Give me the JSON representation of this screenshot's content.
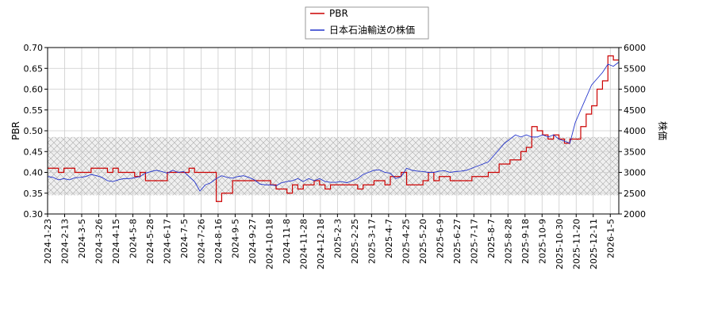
{
  "chart_data": {
    "type": "line",
    "xlabel": "",
    "ylabel_left": "PBR",
    "ylabel_right": "株価",
    "ylim_left": [
      0.3,
      0.7
    ],
    "ylim_right": [
      2000,
      6000
    ],
    "yticks_left": [
      "0.30",
      "0.35",
      "0.40",
      "0.45",
      "0.50",
      "0.55",
      "0.60",
      "0.65",
      "0.70"
    ],
    "yticks_right": [
      "2000",
      "2500",
      "3000",
      "3500",
      "4000",
      "4500",
      "5000",
      "5500",
      "6000"
    ],
    "x_tick_labels": [
      "2024-1-23",
      "2024-2-13",
      "2024-3-5",
      "2024-3-26",
      "2024-4-15",
      "2024-5-8",
      "2024-5-28",
      "2024-6-17",
      "2024-7-5",
      "2024-7-26",
      "2024-8-16",
      "2024-9-5",
      "2024-9-27",
      "2024-10-18",
      "2024-11-8",
      "2024-11-28",
      "2024-12-18",
      "2025-2-3",
      "2025-2-25",
      "2025-3-17",
      "2025-4-7",
      "2025-4-25",
      "2025-5-20",
      "2025-6-9",
      "2025-6-27",
      "2025-7-17",
      "2025-8-7",
      "2025-8-28",
      "2025-9-18",
      "2025-10-9",
      "2025-10-30",
      "2025-11-20",
      "2025-12-11",
      "2026-1-5"
    ],
    "grid": true,
    "legend_placement": "top-center",
    "shaded_band_left": [
      0.345,
      0.485
    ],
    "colors": {
      "pbr": "#cc0000",
      "price": "#2233cc",
      "band": "#999999",
      "grid": "#cccccc"
    },
    "series": [
      {
        "name": "PBR",
        "axis": "left",
        "values": [
          0.41,
          0.41,
          0.4,
          0.41,
          0.41,
          0.4,
          0.4,
          0.4,
          0.41,
          0.41,
          0.41,
          0.4,
          0.41,
          0.4,
          0.4,
          0.4,
          0.39,
          0.4,
          0.38,
          0.38,
          0.38,
          0.38,
          0.4,
          0.4,
          0.4,
          0.4,
          0.41,
          0.4,
          0.4,
          0.4,
          0.4,
          0.33,
          0.35,
          0.35,
          0.38,
          0.38,
          0.38,
          0.38,
          0.38,
          0.38,
          0.38,
          0.37,
          0.36,
          0.36,
          0.35,
          0.37,
          0.36,
          0.37,
          0.37,
          0.38,
          0.37,
          0.36,
          0.37,
          0.37,
          0.37,
          0.37,
          0.37,
          0.36,
          0.37,
          0.37,
          0.38,
          0.38,
          0.37,
          0.39,
          0.39,
          0.4,
          0.37,
          0.37,
          0.37,
          0.38,
          0.4,
          0.38,
          0.39,
          0.39,
          0.38,
          0.38,
          0.38,
          0.38,
          0.39,
          0.39,
          0.39,
          0.4,
          0.4,
          0.42,
          0.42,
          0.43,
          0.43,
          0.45,
          0.46,
          0.51,
          0.5,
          0.49,
          0.48,
          0.49,
          0.48,
          0.47,
          0.48,
          0.48,
          0.51,
          0.54,
          0.56,
          0.6,
          0.62,
          0.68,
          0.67,
          0.67
        ]
      },
      {
        "name": "日本石油輸送の株価",
        "axis": "right",
        "values": [
          2900,
          2880,
          2820,
          2850,
          2820,
          2870,
          2880,
          2900,
          2950,
          2920,
          2880,
          2800,
          2780,
          2820,
          2850,
          2850,
          2870,
          2900,
          2980,
          3020,
          3050,
          3020,
          2980,
          3050,
          3000,
          3020,
          2900,
          2780,
          2550,
          2700,
          2750,
          2850,
          2920,
          2880,
          2860,
          2900,
          2920,
          2880,
          2820,
          2720,
          2700,
          2700,
          2680,
          2750,
          2780,
          2800,
          2850,
          2780,
          2850,
          2800,
          2850,
          2780,
          2760,
          2760,
          2780,
          2750,
          2800,
          2850,
          2950,
          3000,
          3050,
          3060,
          3000,
          2980,
          2850,
          2900,
          3100,
          3050,
          3030,
          3020,
          3000,
          3000,
          3030,
          3040,
          3000,
          3020,
          3030,
          3050,
          3100,
          3150,
          3200,
          3250,
          3400,
          3550,
          3700,
          3800,
          3900,
          3850,
          3900,
          3850,
          3850,
          3900,
          3850,
          3900,
          3800,
          3750,
          3700,
          4200,
          4500,
          4800,
          5100,
          5250,
          5400,
          5600,
          5550,
          5650
        ]
      }
    ]
  }
}
